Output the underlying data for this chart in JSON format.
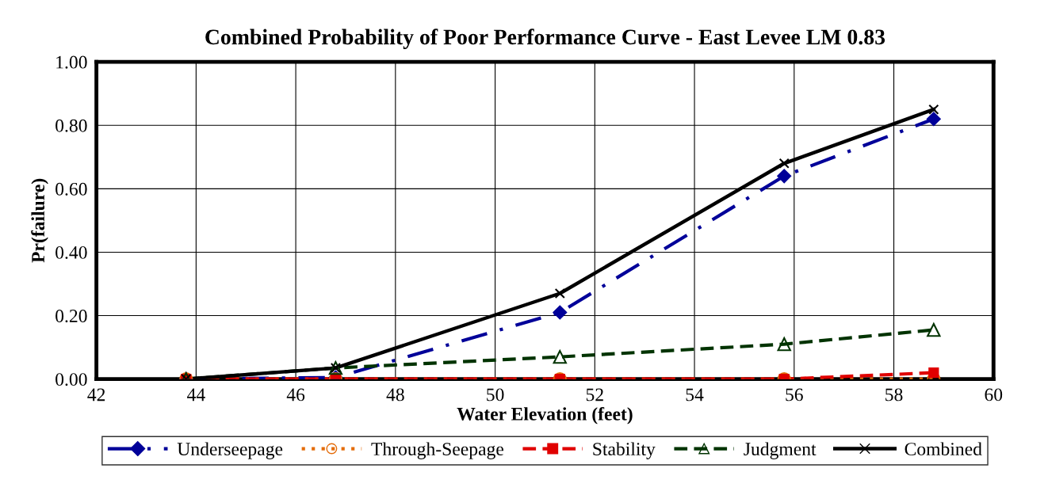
{
  "chart_data": {
    "type": "line",
    "title": "Combined Probability of Poor Performance Curve - East Levee LM 0.83",
    "xlabel": "Water Elevation (feet)",
    "ylabel": "Pr(failure)",
    "x": [
      43.8,
      46.8,
      51.3,
      55.8,
      58.8
    ],
    "series": [
      {
        "name": "Underseepage",
        "color": "#000099",
        "marker": "diamond",
        "line_style": "dashdot",
        "values": [
          0,
          0.005,
          0.21,
          0.64,
          0.82
        ]
      },
      {
        "name": "Through-Seepage",
        "color": "#e46c0a",
        "marker": "circle",
        "line_style": "dotted",
        "values": [
          0,
          0,
          0,
          0,
          0
        ]
      },
      {
        "name": "Stability",
        "color": "#e00000",
        "marker": "square",
        "line_style": "dashed",
        "values": [
          0,
          0,
          0,
          0,
          0.02
        ]
      },
      {
        "name": "Judgment",
        "color": "#003300",
        "marker": "triangle",
        "line_style": "dashed",
        "values": [
          0,
          0.035,
          0.07,
          0.11,
          0.155
        ]
      },
      {
        "name": "Combined",
        "color": "#000000",
        "marker": "cross",
        "line_style": "solid",
        "values": [
          0,
          0.035,
          0.27,
          0.68,
          0.85
        ]
      }
    ],
    "xlim": [
      42,
      60
    ],
    "xticks": [
      42,
      44,
      46,
      48,
      50,
      52,
      54,
      56,
      58,
      60
    ],
    "ylim": [
      0,
      1
    ],
    "yticks": [
      {
        "value": 0,
        "label": "0.00"
      },
      {
        "value": 0.2,
        "label": "0.20"
      },
      {
        "value": 0.4,
        "label": "0.40"
      },
      {
        "value": 0.6,
        "label": "0.60"
      },
      {
        "value": 0.8,
        "label": "0.80"
      },
      {
        "value": 1,
        "label": "1.00"
      }
    ],
    "grid": true,
    "legend": "bottom"
  }
}
